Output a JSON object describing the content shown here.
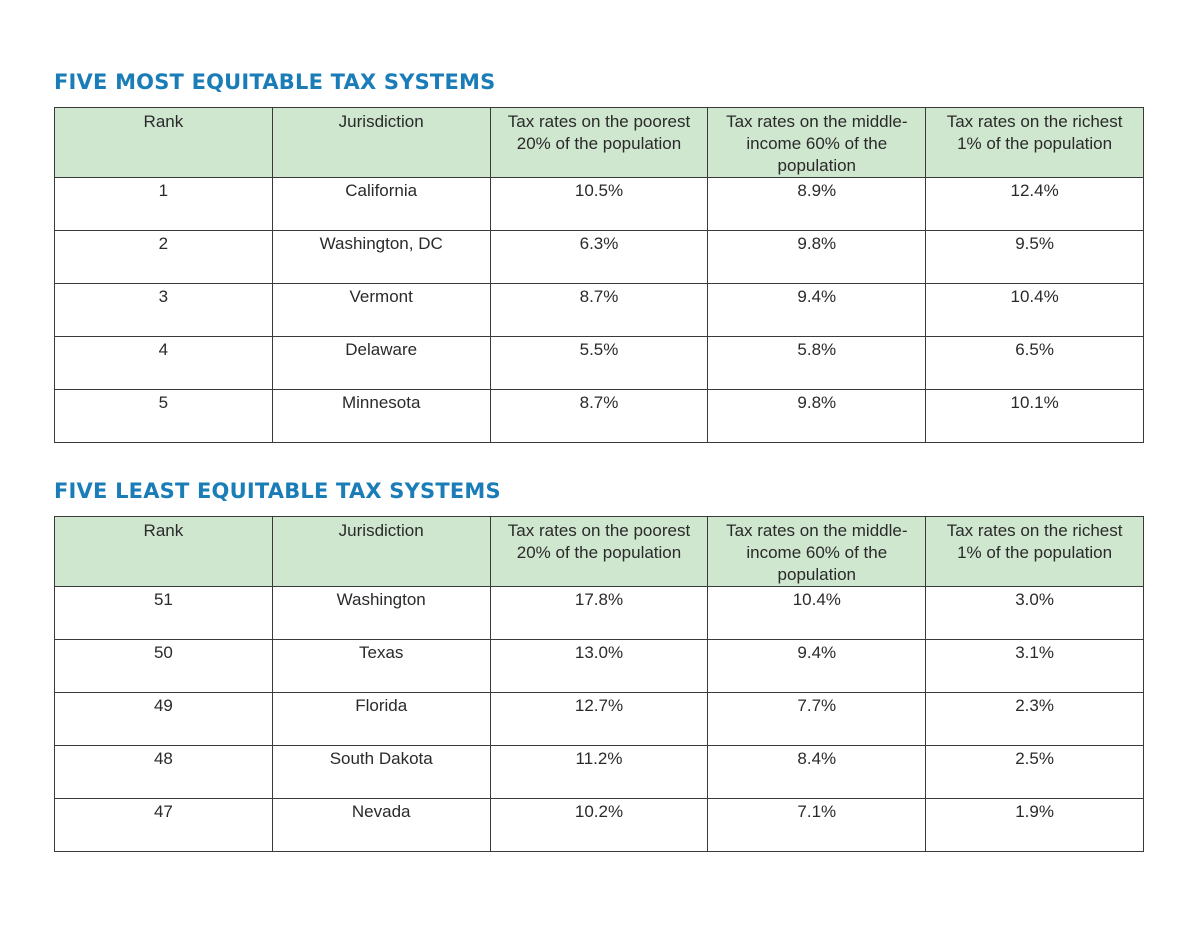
{
  "colors": {
    "title": "#1a7db8",
    "header_bg": "#cfe6cf",
    "border": "#3a3a3a"
  },
  "columns": {
    "rank": "Rank",
    "jurisdiction": "Jurisdiction",
    "poorest": "Tax rates on the poorest 20% of the population",
    "middle": "Tax rates on the middle-income 60% of the population",
    "richest": "Tax rates on the richest 1% of the population"
  },
  "most_equitable": {
    "title": "FIVE MOST EQUITABLE TAX SYSTEMS",
    "rows": [
      {
        "rank": "1",
        "jurisdiction": "California",
        "poorest": "10.5%",
        "middle": "8.9%",
        "richest": "12.4%"
      },
      {
        "rank": "2",
        "jurisdiction": "Washington, DC",
        "poorest": "6.3%",
        "middle": "9.8%",
        "richest": "9.5%"
      },
      {
        "rank": "3",
        "jurisdiction": "Vermont",
        "poorest": "8.7%",
        "middle": "9.4%",
        "richest": "10.4%"
      },
      {
        "rank": "4",
        "jurisdiction": "Delaware",
        "poorest": "5.5%",
        "middle": "5.8%",
        "richest": "6.5%"
      },
      {
        "rank": "5",
        "jurisdiction": "Minnesota",
        "poorest": "8.7%",
        "middle": "9.8%",
        "richest": "10.1%"
      }
    ]
  },
  "least_equitable": {
    "title": "FIVE LEAST EQUITABLE TAX SYSTEMS",
    "rows": [
      {
        "rank": "51",
        "jurisdiction": "Washington",
        "poorest": "17.8%",
        "middle": "10.4%",
        "richest": "3.0%"
      },
      {
        "rank": "50",
        "jurisdiction": "Texas",
        "poorest": "13.0%",
        "middle": "9.4%",
        "richest": "3.1%"
      },
      {
        "rank": "49",
        "jurisdiction": "Florida",
        "poorest": "12.7%",
        "middle": "7.7%",
        "richest": "2.3%"
      },
      {
        "rank": "48",
        "jurisdiction": "South Dakota",
        "poorest": "11.2%",
        "middle": "8.4%",
        "richest": "2.5%"
      },
      {
        "rank": "47",
        "jurisdiction": "Nevada",
        "poorest": "10.2%",
        "middle": "7.1%",
        "richest": "1.9%"
      }
    ]
  }
}
